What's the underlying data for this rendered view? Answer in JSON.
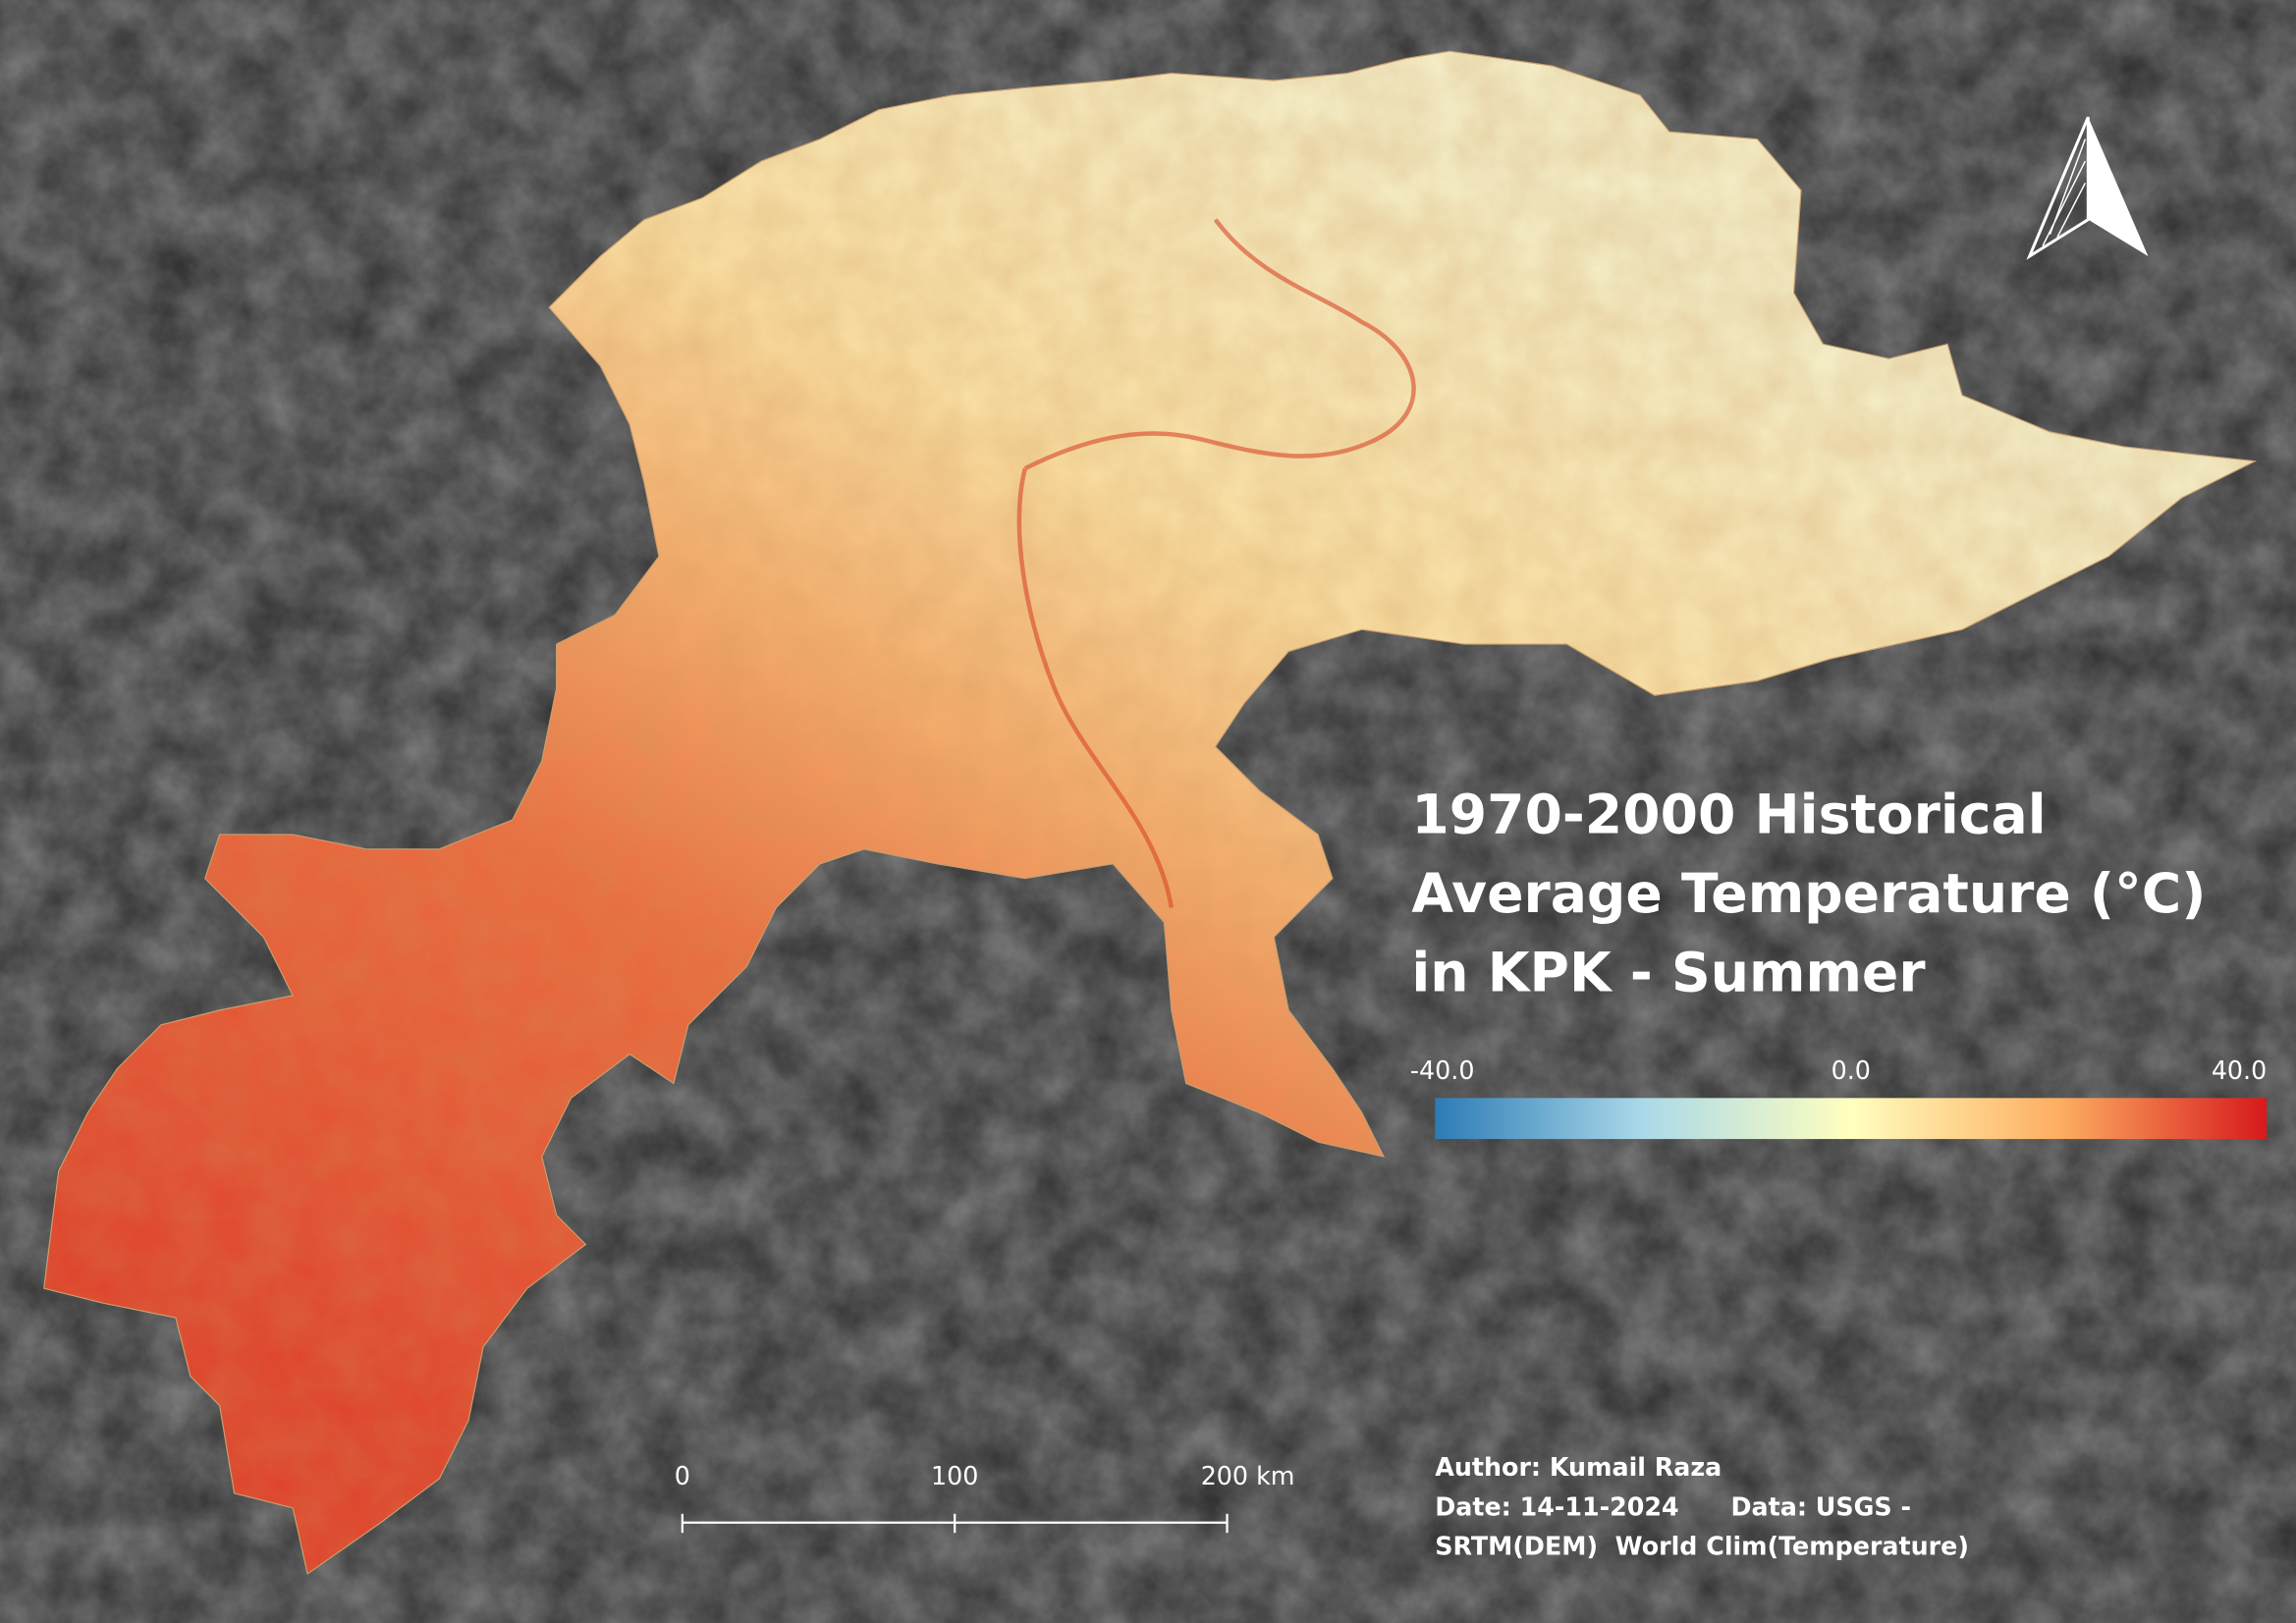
{
  "title_lines": [
    "1970-2000 Historical",
    "Average Temperature (°C)",
    "in KPK - Summer"
  ],
  "legend": {
    "colors": [
      "#2c7bb6",
      "#abd9e9",
      "#ffffbf",
      "#fdae61",
      "#d7191c"
    ],
    "ticks": [
      {
        "value": -40,
        "label": "-40.0"
      },
      {
        "value": 0,
        "label": "0.0"
      },
      {
        "value": 40,
        "label": "40.0"
      }
    ]
  },
  "scale_bar": {
    "ticks": [
      0,
      100,
      {
        "value": 200,
        "label": "200 km"
      }
    ]
  },
  "credits": [
    "Author: Kumail Raza",
    "Date: 14-11-2024      Data: USGS -",
    "SRTM(DEM)  World Clim(Temperature)"
  ]
}
